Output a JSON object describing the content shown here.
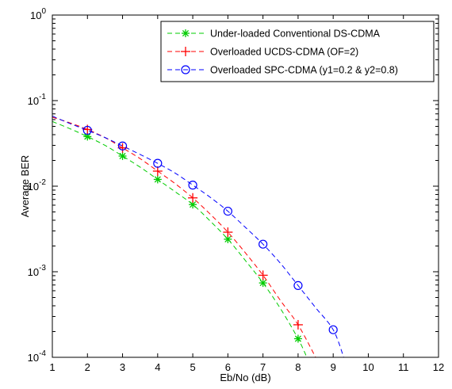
{
  "chart_data": {
    "type": "line",
    "xlabel": "Eb/No (dB)",
    "ylabel": "Average BER",
    "xlim": [
      1,
      12
    ],
    "ylim": [
      0.0001,
      1
    ],
    "yscale": "log",
    "grid": false,
    "legend_position": "top-right",
    "x_ticks": [
      1,
      2,
      3,
      4,
      5,
      6,
      7,
      8,
      9,
      10,
      11,
      12
    ],
    "y_ticks": [
      {
        "value": 0.0001,
        "base": "10",
        "exp": "-4"
      },
      {
        "value": 0.001,
        "base": "10",
        "exp": "-3"
      },
      {
        "value": 0.01,
        "base": "10",
        "exp": "-2"
      },
      {
        "value": 0.1,
        "base": "10",
        "exp": "-1"
      },
      {
        "value": 1,
        "base": "10",
        "exp": "0"
      }
    ],
    "series": [
      {
        "name": "Under-loaded Conventional DS-CDMA",
        "color": "#00cc00",
        "marker": "star",
        "x": [
          2,
          3,
          4,
          5,
          6,
          7,
          8
        ],
        "y": [
          0.038,
          0.0225,
          0.012,
          0.0061,
          0.0024,
          0.00074,
          0.000165
        ],
        "curve_x": [
          1,
          1.5,
          2,
          2.5,
          3,
          3.5,
          4,
          4.5,
          5,
          5.5,
          6,
          6.5,
          7,
          7.5,
          8,
          8.25
        ],
        "curve_y": [
          0.057,
          0.047,
          0.038,
          0.03,
          0.0225,
          0.0167,
          0.012,
          0.0086,
          0.0061,
          0.0039,
          0.0024,
          0.00135,
          0.00074,
          0.00037,
          0.000165,
          0.0001
        ]
      },
      {
        "name": "Overloaded UCDS-CDMA (OF=2)",
        "color": "#ff0000",
        "marker": "plus",
        "x": [
          2,
          3,
          4,
          5,
          6,
          7,
          8
        ],
        "y": [
          0.046,
          0.028,
          0.015,
          0.0073,
          0.0029,
          0.00091,
          0.00024
        ],
        "curve_x": [
          1,
          1.5,
          2,
          2.5,
          3,
          3.5,
          4,
          4.5,
          5,
          5.5,
          6,
          6.5,
          7,
          7.5,
          8,
          8.5
        ],
        "curve_y": [
          0.064,
          0.055,
          0.046,
          0.037,
          0.028,
          0.021,
          0.015,
          0.0107,
          0.0073,
          0.0047,
          0.0029,
          0.00166,
          0.00091,
          0.00046,
          0.00024,
          0.0001
        ]
      },
      {
        "name": "Overloaded SPC-CDMA (y1=0.2 & y2=0.8)",
        "color": "#0000ff",
        "marker": "circle",
        "x": [
          2,
          3,
          4,
          5,
          6,
          7,
          8,
          9
        ],
        "y": [
          0.045,
          0.0295,
          0.0185,
          0.0103,
          0.0051,
          0.0021,
          0.00069,
          0.00021
        ],
        "curve_x": [
          1,
          1.5,
          2,
          2.5,
          3,
          3.5,
          4,
          4.5,
          5,
          5.5,
          6,
          6.5,
          7,
          7.5,
          8,
          8.5,
          9,
          9.3
        ],
        "curve_y": [
          0.066,
          0.054,
          0.045,
          0.037,
          0.0295,
          0.0235,
          0.0185,
          0.0142,
          0.0103,
          0.0074,
          0.0051,
          0.0033,
          0.0021,
          0.00125,
          0.00069,
          0.00038,
          0.00021,
          0.0001
        ]
      }
    ]
  }
}
